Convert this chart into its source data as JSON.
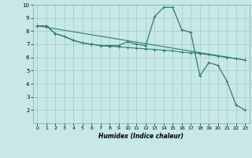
{
  "title": "",
  "xlabel": "Humidex (Indice chaleur)",
  "background_color": "#c8e8e8",
  "line_color": "#2e7d6e",
  "xlim": [
    -0.5,
    23.5
  ],
  "ylim": [
    1,
    10
  ],
  "xticks": [
    0,
    1,
    2,
    3,
    4,
    5,
    6,
    7,
    8,
    9,
    10,
    11,
    12,
    13,
    14,
    15,
    16,
    17,
    18,
    19,
    20,
    21,
    22,
    23
  ],
  "yticks": [
    2,
    3,
    4,
    5,
    6,
    7,
    8,
    9,
    10
  ],
  "series1_x": [
    0,
    1,
    2,
    3,
    4,
    5,
    6,
    7,
    8,
    9,
    10,
    11,
    12,
    13,
    14,
    15,
    16,
    17,
    18,
    19,
    20,
    21,
    22,
    23
  ],
  "series1_y": [
    8.4,
    8.4,
    7.8,
    7.6,
    7.3,
    7.1,
    7.0,
    6.9,
    6.9,
    6.9,
    7.2,
    7.0,
    6.9,
    9.1,
    9.8,
    9.8,
    8.1,
    7.9,
    4.6,
    5.6,
    5.4,
    4.2,
    2.4,
    2.0
  ],
  "series2_x": [
    0,
    1,
    2,
    3,
    4,
    5,
    6,
    7,
    8,
    9,
    10,
    11,
    12,
    13,
    14,
    15,
    16,
    17,
    18,
    19,
    20,
    21,
    22,
    23
  ],
  "series2_y": [
    8.4,
    8.4,
    7.8,
    7.6,
    7.3,
    7.1,
    7.0,
    6.9,
    6.85,
    6.8,
    6.75,
    6.7,
    6.65,
    6.6,
    6.55,
    6.5,
    6.4,
    6.35,
    6.3,
    6.2,
    6.1,
    6.0,
    5.9,
    5.8
  ],
  "series3_x": [
    0,
    23
  ],
  "series3_y": [
    8.4,
    5.8
  ],
  "grid_color": "#a0c8c8",
  "marker": "+"
}
